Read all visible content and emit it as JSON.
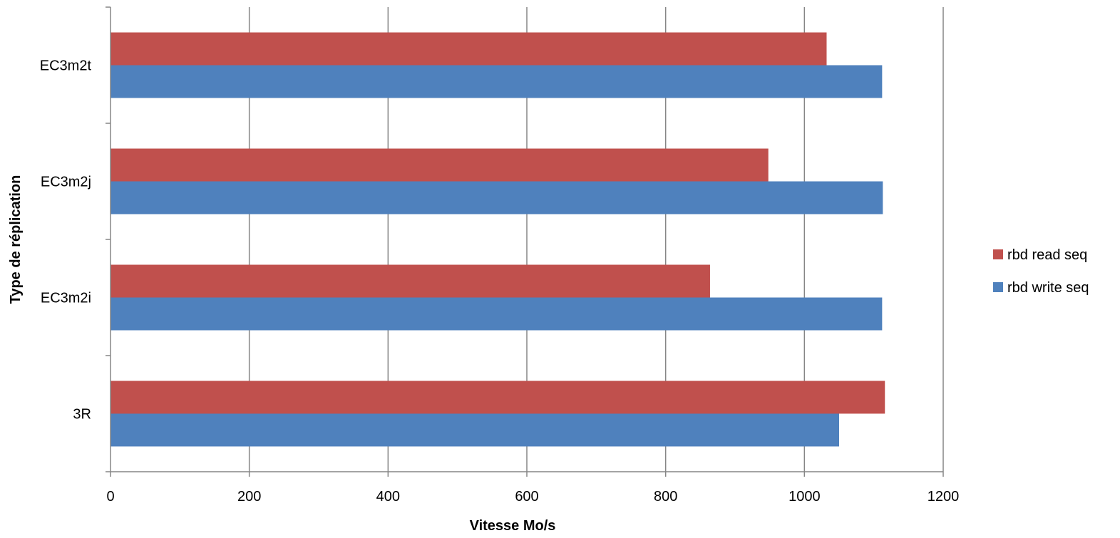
{
  "chart_data": {
    "type": "bar",
    "orientation": "horizontal",
    "categories": [
      "3R",
      "EC3m2i",
      "EC3m2j",
      "EC3m2t"
    ],
    "series": [
      {
        "name": "rbd write seq",
        "color": "#4F81BD",
        "values": [
          1050,
          1112,
          1113,
          1112
        ]
      },
      {
        "name": "rbd read seq",
        "color": "#C0504D",
        "values": [
          1116,
          864,
          948,
          1032
        ]
      }
    ],
    "xlabel": "Vitesse Mo/s",
    "ylabel": "Type de réplication",
    "xlim": [
      0,
      1200
    ],
    "xticks": [
      0,
      200,
      400,
      600,
      800,
      1000,
      1200
    ],
    "grid": true,
    "legend": "right"
  }
}
